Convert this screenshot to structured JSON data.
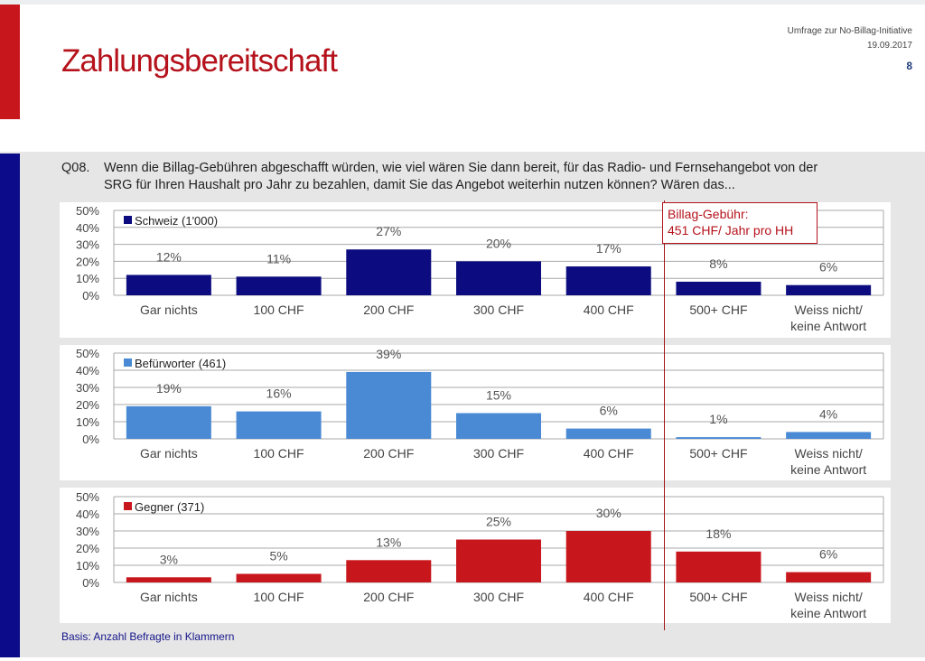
{
  "header": {
    "title": "Zahlungsbereitschaft",
    "survey": "Umfrage zur No-Billag-Initiative",
    "date": "19.09.2017",
    "page": "8"
  },
  "question": {
    "id": "Q08.",
    "line1": "Wenn die Billag-Gebühren abgeschafft würden, wie viel wären Sie dann bereit, für das Radio- und Fernsehangebot von der",
    "line2": "SRG für Ihren Haushalt pro Jahr zu bezahlen, damit Sie das Angebot weiterhin nutzen können? Wären das..."
  },
  "annotation": {
    "line1": "Billag-Gebühr:",
    "line2": "451 CHF/ Jahr pro HH"
  },
  "footer": "Basis: Anzahl Befragte in Klammern",
  "chart_data": [
    {
      "type": "bar",
      "legend": "Schweiz (1'000)",
      "color": "#0c0c80",
      "categories": [
        [
          "Gar nichts"
        ],
        [
          "100 CHF"
        ],
        [
          "200 CHF"
        ],
        [
          "300 CHF"
        ],
        [
          "400 CHF"
        ],
        [
          "500+ CHF"
        ],
        [
          "Weiss nicht/",
          "keine Antwort"
        ]
      ],
      "values": [
        12,
        11,
        27,
        20,
        17,
        8,
        6
      ],
      "ylim": [
        0,
        50
      ],
      "yticks": [
        "0%",
        "10%",
        "20%",
        "30%",
        "40%",
        "50%"
      ],
      "unit": "%"
    },
    {
      "type": "bar",
      "legend": "Befürworter (461)",
      "color": "#4a8ad4",
      "categories": [
        [
          "Gar nichts"
        ],
        [
          "100 CHF"
        ],
        [
          "200 CHF"
        ],
        [
          "300 CHF"
        ],
        [
          "400 CHF"
        ],
        [
          "500+ CHF"
        ],
        [
          "Weiss nicht/",
          "keine Antwort"
        ]
      ],
      "values": [
        19,
        16,
        39,
        15,
        6,
        1,
        4
      ],
      "ylim": [
        0,
        50
      ],
      "yticks": [
        "0%",
        "10%",
        "20%",
        "30%",
        "40%",
        "50%"
      ],
      "unit": "%"
    },
    {
      "type": "bar",
      "legend": "Gegner (371)",
      "color": "#c8161d",
      "categories": [
        [
          "Gar nichts"
        ],
        [
          "100 CHF"
        ],
        [
          "200 CHF"
        ],
        [
          "300 CHF"
        ],
        [
          "400 CHF"
        ],
        [
          "500+ CHF"
        ],
        [
          "Weiss nicht/",
          "keine Antwort"
        ]
      ],
      "values": [
        3,
        5,
        13,
        25,
        30,
        18,
        6
      ],
      "ylim": [
        0,
        50
      ],
      "yticks": [
        "0%",
        "10%",
        "20%",
        "30%",
        "40%",
        "50%"
      ],
      "unit": "%"
    }
  ]
}
